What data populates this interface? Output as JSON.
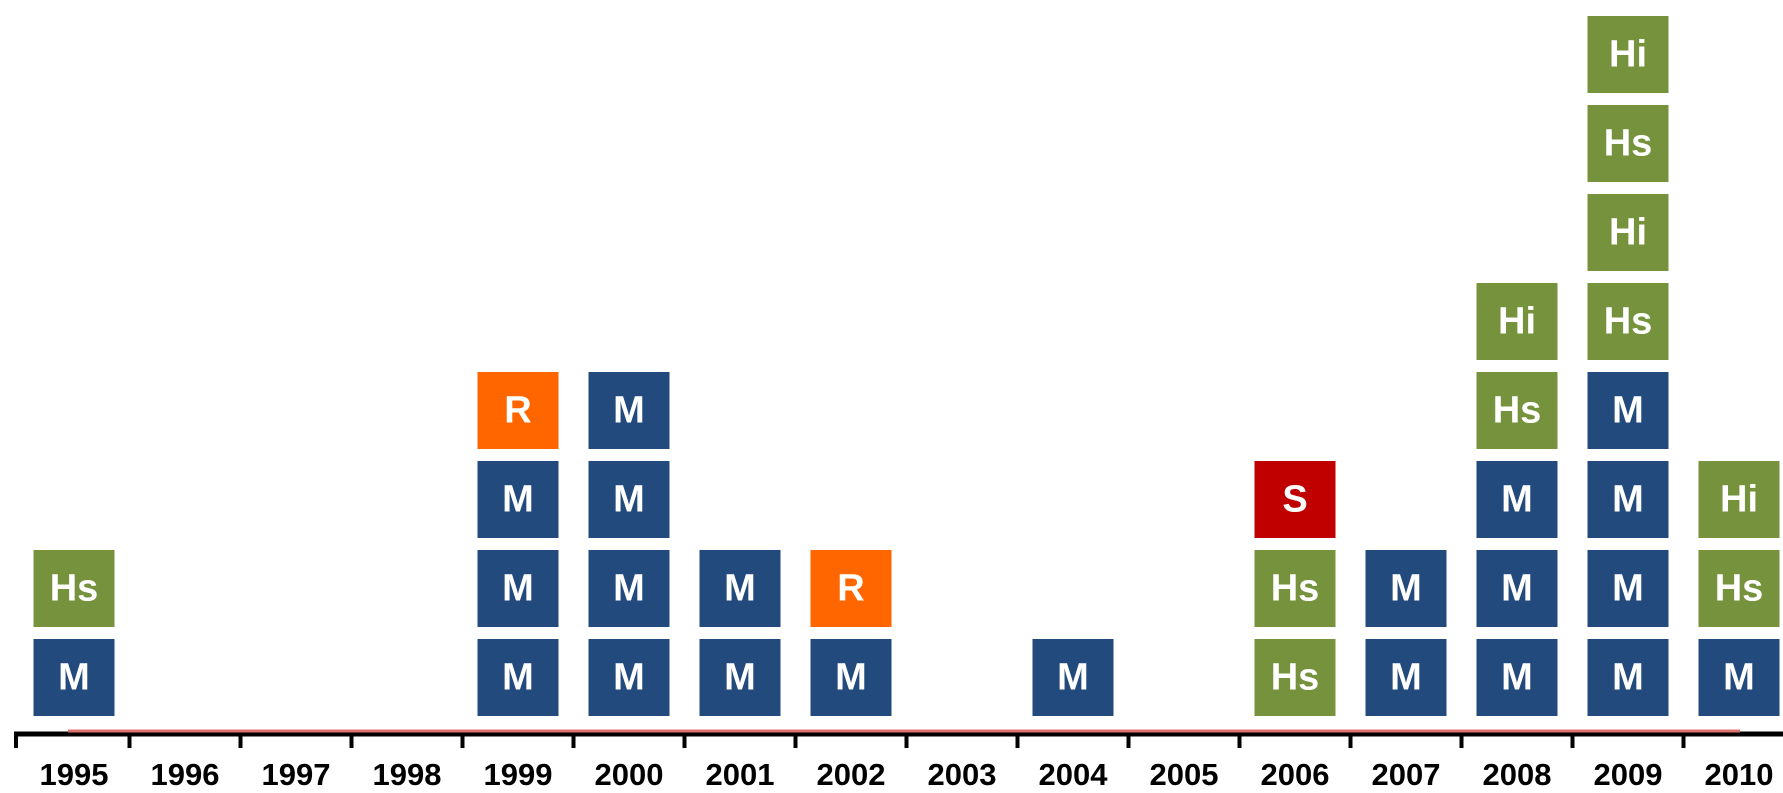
{
  "timeline": {
    "colors": {
      "M": "#234a7c",
      "Hs": "#76923c",
      "Hi": "#76923c",
      "R": "#ff6600",
      "S": "#c00000"
    },
    "years": [
      {
        "year": "1995",
        "boxes": [
          "M",
          "Hs"
        ]
      },
      {
        "year": "1996",
        "boxes": []
      },
      {
        "year": "1997",
        "boxes": []
      },
      {
        "year": "1998",
        "boxes": []
      },
      {
        "year": "1999",
        "boxes": [
          "M",
          "M",
          "M",
          "R"
        ]
      },
      {
        "year": "2000",
        "boxes": [
          "M",
          "M",
          "M",
          "M"
        ]
      },
      {
        "year": "2001",
        "boxes": [
          "M",
          "M"
        ]
      },
      {
        "year": "2002",
        "boxes": [
          "M",
          "R"
        ]
      },
      {
        "year": "2003",
        "boxes": []
      },
      {
        "year": "2004",
        "boxes": [
          "M"
        ]
      },
      {
        "year": "2005",
        "boxes": []
      },
      {
        "year": "2006",
        "boxes": [
          "Hs",
          "Hs",
          "S"
        ]
      },
      {
        "year": "2007",
        "boxes": [
          "M",
          "M"
        ]
      },
      {
        "year": "2008",
        "boxes": [
          "M",
          "M",
          "M",
          "Hs",
          "Hi"
        ]
      },
      {
        "year": "2009",
        "boxes": [
          "M",
          "M",
          "M",
          "M",
          "Hs",
          "Hi",
          "Hs",
          "Hi"
        ]
      },
      {
        "year": "2010",
        "boxes": [
          "M",
          "Hs",
          "Hi"
        ]
      }
    ]
  }
}
